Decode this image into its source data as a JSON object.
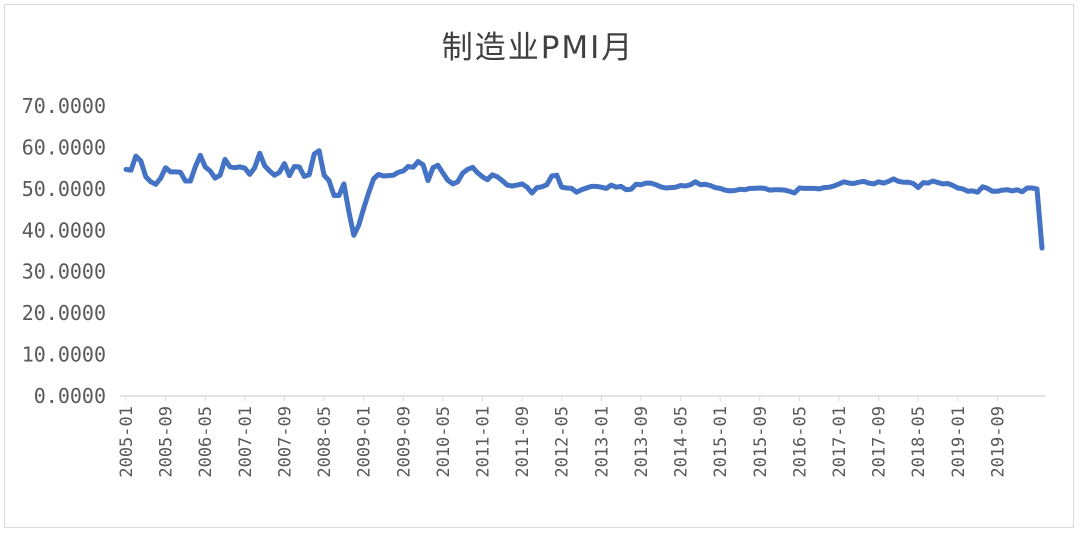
{
  "chart_data": {
    "type": "line",
    "title": "制造业PMI月",
    "xlabel": "",
    "ylabel": "",
    "ylim": [
      0,
      70
    ],
    "y_ticks": [
      "0.0000",
      "10.0000",
      "20.0000",
      "30.0000",
      "40.0000",
      "50.0000",
      "60.0000",
      "70.0000"
    ],
    "x_ticks": [
      "2005-01",
      "2005-09",
      "2006-05",
      "2007-01",
      "2007-09",
      "2008-05",
      "2009-01",
      "2009-09",
      "2010-05",
      "2011-01",
      "2011-09",
      "2012-05",
      "2013-01",
      "2013-09",
      "2014-05",
      "2015-01",
      "2015-09",
      "2016-05",
      "2017-01",
      "2017-09",
      "2018-05",
      "2019-01",
      "2019-09"
    ],
    "x_start": "2005-01",
    "x_end": "2020-02",
    "legend": "none",
    "grid": false,
    "line_color": "#4472c4",
    "series": [
      {
        "name": "",
        "values": [
          54.7,
          54.5,
          57.9,
          56.7,
          52.9,
          51.7,
          51.1,
          52.6,
          55.1,
          54.1,
          54.1,
          54.0,
          51.9,
          51.9,
          55.3,
          58.1,
          55.3,
          54.3,
          52.6,
          53.3,
          57.1,
          55.3,
          55.1,
          55.3,
          55.0,
          53.5,
          55.1,
          58.6,
          55.6,
          54.3,
          53.3,
          54.0,
          56.1,
          53.2,
          55.4,
          55.3,
          53.0,
          53.4,
          58.4,
          59.2,
          53.3,
          52.0,
          48.4,
          48.4,
          51.2,
          44.6,
          38.8,
          41.2,
          45.3,
          49.0,
          52.4,
          53.5,
          53.1,
          53.2,
          53.3,
          54.0,
          54.3,
          55.4,
          55.2,
          56.6,
          55.8,
          52.0,
          55.1,
          55.7,
          53.8,
          52.1,
          51.2,
          51.7,
          53.8,
          54.7,
          55.2,
          53.9,
          52.9,
          52.2,
          53.4,
          52.9,
          52.0,
          50.9,
          50.7,
          50.9,
          51.2,
          50.4,
          49.0,
          50.3,
          50.5,
          51.0,
          53.1,
          53.3,
          50.4,
          50.2,
          50.1,
          49.2,
          49.8,
          50.2,
          50.6,
          50.6,
          50.4,
          50.1,
          50.9,
          50.4,
          50.6,
          49.8,
          49.9,
          51.1,
          51.0,
          51.4,
          51.4,
          51.0,
          50.5,
          50.2,
          50.3,
          50.4,
          50.8,
          50.7,
          51.0,
          51.7,
          51.0,
          51.1,
          50.8,
          50.3,
          50.1,
          49.7,
          49.5,
          49.6,
          49.9,
          49.8,
          50.1,
          50.1,
          50.2,
          50.1,
          49.7,
          49.8,
          49.8,
          49.7,
          49.4,
          49.0,
          50.2,
          50.1,
          50.1,
          50.1,
          50.0,
          50.3,
          50.4,
          50.7,
          51.2,
          51.7,
          51.4,
          51.3,
          51.6,
          51.8,
          51.4,
          51.2,
          51.7,
          51.4,
          51.8,
          52.4,
          51.8,
          51.6,
          51.6,
          51.3,
          50.3,
          51.5,
          51.4,
          51.9,
          51.5,
          51.2,
          51.3,
          50.8,
          50.2,
          50.0,
          49.4,
          49.5,
          49.2,
          50.5,
          50.1,
          49.4,
          49.4,
          49.7,
          49.8,
          49.5,
          49.8,
          49.3,
          50.2,
          50.2,
          50.0,
          35.7
        ]
      }
    ]
  }
}
